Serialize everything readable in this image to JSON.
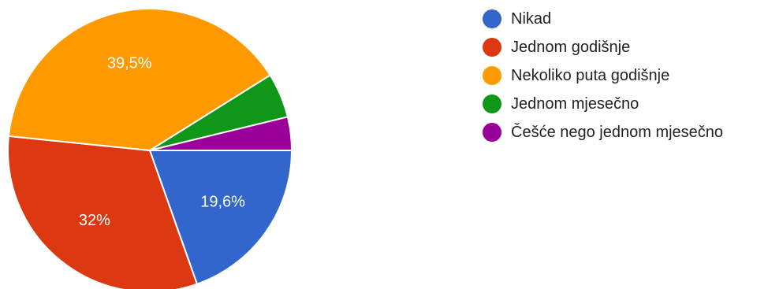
{
  "chart_data": {
    "type": "pie",
    "slices": [
      {
        "label": "Nikad",
        "value": 19.6,
        "value_label": "19,6%",
        "color": "#3366cc"
      },
      {
        "label": "Jednom godišnje",
        "value": 32,
        "value_label": "32%",
        "color": "#dc3912"
      },
      {
        "label": "Nekoliko puta godišnje",
        "value": 39.5,
        "value_label": "39,5%",
        "color": "#ff9900"
      },
      {
        "label": "Jednom mjesečno",
        "value": 5.1,
        "value_label": "",
        "color": "#109618"
      },
      {
        "label": "Češće nego jednom mjesečno",
        "value": 3.8,
        "value_label": "",
        "color": "#990099"
      }
    ],
    "start_angle": "3 o'clock",
    "direction": "clockwise",
    "legend_position": "right"
  }
}
